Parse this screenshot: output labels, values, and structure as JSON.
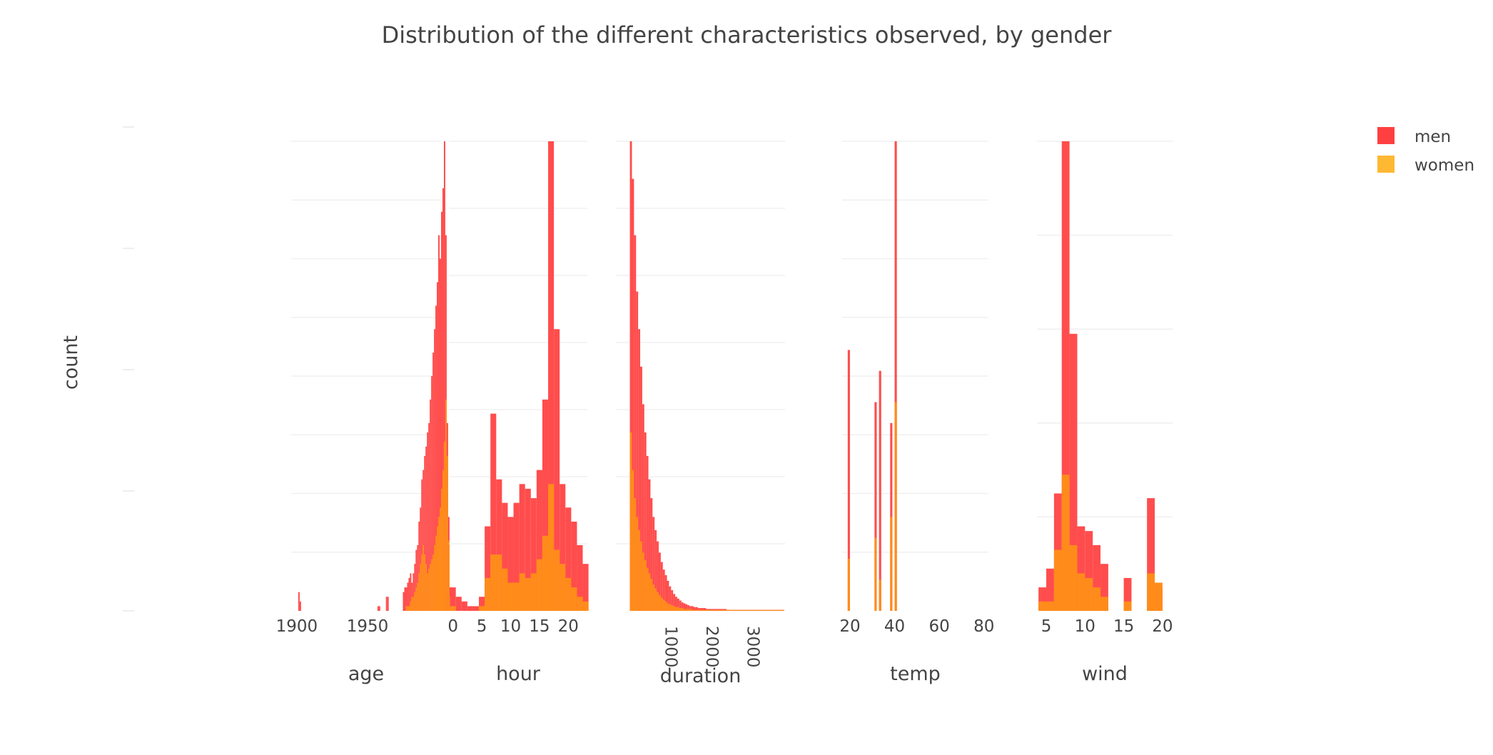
{
  "chart_data": {
    "type": "bar",
    "title": "Distribution of the different characteristics observed, by gender",
    "ylabel": "count",
    "barmode": "overlay",
    "legend": {
      "placement": "top-right",
      "items": [
        {
          "name": "men",
          "color": "#ff4040"
        },
        {
          "name": "women",
          "color": "#ffb833"
        }
      ]
    },
    "series_names": [
      "men",
      "women"
    ],
    "colors": {
      "men": "#ff4d4d",
      "women": "#ffb833",
      "overlap": "#ff8c1a",
      "grid": "#eeeeee",
      "text": "#444444"
    },
    "panels": [
      {
        "name": "age",
        "xlabel": "age",
        "xrange": [
          1896,
          2002
        ],
        "ticks": [
          "1900",
          "1950"
        ],
        "tick_values": [
          1900,
          1950
        ],
        "tick_rotation": 0,
        "x_start": 1899,
        "bin_width": 1,
        "men": [
          0,
          0,
          4,
          2,
          0,
          0,
          0,
          0,
          0,
          0,
          0,
          0,
          0,
          0,
          0,
          0,
          0,
          0,
          0,
          0,
          0,
          0,
          0,
          0,
          0,
          0,
          0,
          0,
          0,
          0,
          0,
          0,
          0,
          0,
          0,
          0,
          0,
          0,
          0,
          0,
          0,
          0,
          0,
          0,
          0,
          0,
          0,
          0,
          0,
          0,
          0,
          0,
          0,
          0,
          0,
          0,
          0,
          0,
          1,
          1,
          0,
          0,
          0,
          0,
          3,
          3,
          0,
          0,
          0,
          0,
          0,
          0,
          0,
          0,
          0,
          0,
          4,
          5,
          5,
          6,
          7,
          8,
          6,
          8,
          10,
          13,
          14,
          19,
          22,
          28,
          30,
          33,
          35,
          38,
          40,
          45,
          50,
          55,
          60,
          65,
          70,
          80,
          75,
          85,
          90,
          100,
          80,
          40,
          20,
          5
        ],
        "women": [
          0,
          0,
          0,
          0,
          0,
          0,
          0,
          0,
          0,
          0,
          0,
          0,
          0,
          0,
          0,
          0,
          0,
          0,
          0,
          0,
          0,
          0,
          0,
          0,
          0,
          0,
          0,
          0,
          0,
          0,
          0,
          0,
          0,
          0,
          0,
          0,
          0,
          0,
          0,
          0,
          0,
          0,
          0,
          0,
          0,
          0,
          0,
          0,
          0,
          0,
          0,
          0,
          0,
          0,
          0,
          0,
          0,
          0,
          0,
          0,
          0,
          0,
          0,
          0,
          0,
          0,
          0,
          0,
          0,
          0,
          0,
          0,
          0,
          0,
          0,
          0,
          0,
          0,
          1,
          1,
          1,
          2,
          3,
          3,
          4,
          5,
          6,
          8,
          10,
          12,
          14,
          12,
          10,
          8,
          9,
          10,
          11,
          12,
          14,
          16,
          18,
          20,
          22,
          26,
          30,
          36,
          45,
          33,
          15,
          3
        ]
      },
      {
        "name": "hour",
        "xlabel": "hour",
        "xrange": [
          -0.7,
          23.3
        ],
        "ticks": [
          "0",
          "5",
          "10",
          "15",
          "20"
        ],
        "tick_values": [
          0,
          5,
          10,
          15,
          20
        ],
        "tick_rotation": 0,
        "x_start": -0.5,
        "bin_width": 1,
        "men": [
          5,
          3,
          2,
          1,
          1,
          3,
          18,
          42,
          28,
          23,
          20,
          23,
          27,
          26,
          24,
          30,
          45,
          100,
          60,
          27,
          22,
          19,
          14,
          10
        ],
        "women": [
          1,
          0,
          0,
          0,
          0,
          1,
          7,
          12,
          12,
          9,
          6,
          6,
          8,
          7,
          8,
          11,
          16,
          27,
          13,
          10,
          7,
          5,
          3,
          2
        ]
      },
      {
        "name": "duration",
        "xlabel": "duration",
        "xrange": [
          -340,
          3770
        ],
        "ticks": [
          "1000",
          "2000",
          "3000"
        ],
        "tick_values": [
          1000,
          2000,
          3000
        ],
        "tick_rotation": 90,
        "x_start": 0,
        "bin_width": 50,
        "men": [
          500,
          460,
          400,
          340,
          300,
          260,
          220,
          190,
          165,
          140,
          120,
          100,
          86,
          74,
          62,
          52,
          44,
          38,
          32,
          26,
          22,
          18,
          15,
          13,
          11,
          9,
          8,
          7,
          6,
          5,
          5,
          4,
          4,
          3,
          3,
          3,
          3,
          2,
          2,
          2,
          2,
          2,
          2,
          2,
          2,
          2,
          2,
          1,
          1,
          1,
          1,
          1,
          1,
          1,
          1,
          1,
          1,
          1,
          1,
          1,
          1,
          1,
          1,
          1,
          1,
          1,
          1,
          1,
          1,
          1,
          1,
          1,
          1,
          1,
          1
        ],
        "women": [
          190,
          150,
          120,
          100,
          86,
          74,
          62,
          54,
          46,
          40,
          34,
          28,
          24,
          20,
          17,
          14,
          12,
          10,
          8,
          7,
          6,
          5,
          4,
          4,
          3,
          3,
          2,
          2,
          2,
          2,
          1,
          1,
          1,
          1,
          1,
          1,
          1,
          1,
          1,
          1,
          1,
          1,
          1,
          1,
          1,
          1,
          1,
          1,
          1,
          1,
          1,
          1,
          1,
          1,
          1,
          1,
          1,
          1,
          1,
          1,
          1,
          1,
          1,
          1,
          1,
          1,
          1,
          1,
          1,
          1,
          1,
          1,
          1,
          1,
          1
        ]
      },
      {
        "name": "temp",
        "xlabel": "temp",
        "xrange": [
          16.5,
          82
        ],
        "ticks": [
          "20",
          "40",
          "60",
          "80"
        ],
        "tick_values": [
          20,
          40,
          60,
          80
        ],
        "tick_rotation": 0,
        "x_start": 18,
        "bin_width": 1,
        "men": [
          0,
          25,
          0,
          0,
          0,
          0,
          0,
          0,
          0,
          0,
          0,
          0,
          0,
          20,
          0,
          23,
          0,
          0,
          0,
          0,
          18,
          0,
          45,
          0,
          0,
          0,
          0,
          0,
          0,
          0,
          0,
          0,
          0,
          0,
          0,
          0,
          0,
          0,
          0,
          0,
          0,
          0,
          0,
          0,
          0,
          0,
          0,
          0,
          0,
          0,
          0,
          0,
          0,
          0,
          0,
          0,
          0,
          0,
          0,
          0,
          0,
          0,
          0,
          0,
          0,
          0,
          0,
          0
        ],
        "women": [
          0,
          5,
          0,
          0,
          0,
          0,
          0,
          0,
          0,
          0,
          0,
          0,
          0,
          7,
          0,
          3,
          0,
          0,
          0,
          0,
          9,
          0,
          20,
          0,
          0,
          0,
          0,
          0,
          0,
          0,
          0,
          0,
          0,
          0,
          0,
          0,
          0,
          0,
          0,
          0,
          0,
          0,
          0,
          0,
          0,
          0,
          0,
          0,
          0,
          0,
          0,
          0,
          0,
          0,
          0,
          0,
          0,
          0,
          0,
          0,
          0,
          0,
          0,
          0,
          0,
          0,
          0,
          0
        ]
      },
      {
        "name": "wind",
        "xlabel": "wind",
        "xrange": [
          3.8,
          21.3
        ],
        "ticks": [
          "5",
          "10",
          "15",
          "20"
        ],
        "tick_values": [
          5,
          10,
          15,
          20
        ],
        "tick_rotation": 0,
        "x_start": 4,
        "bin_width": 1,
        "men": [
          5,
          9,
          25,
          100,
          59,
          18,
          17,
          14,
          10,
          0,
          0,
          7,
          0,
          0,
          24,
          5,
          0
        ],
        "women": [
          2,
          2,
          13,
          29,
          14,
          8,
          7,
          5,
          3,
          0,
          0,
          2,
          0,
          0,
          8,
          6,
          0
        ]
      }
    ]
  }
}
